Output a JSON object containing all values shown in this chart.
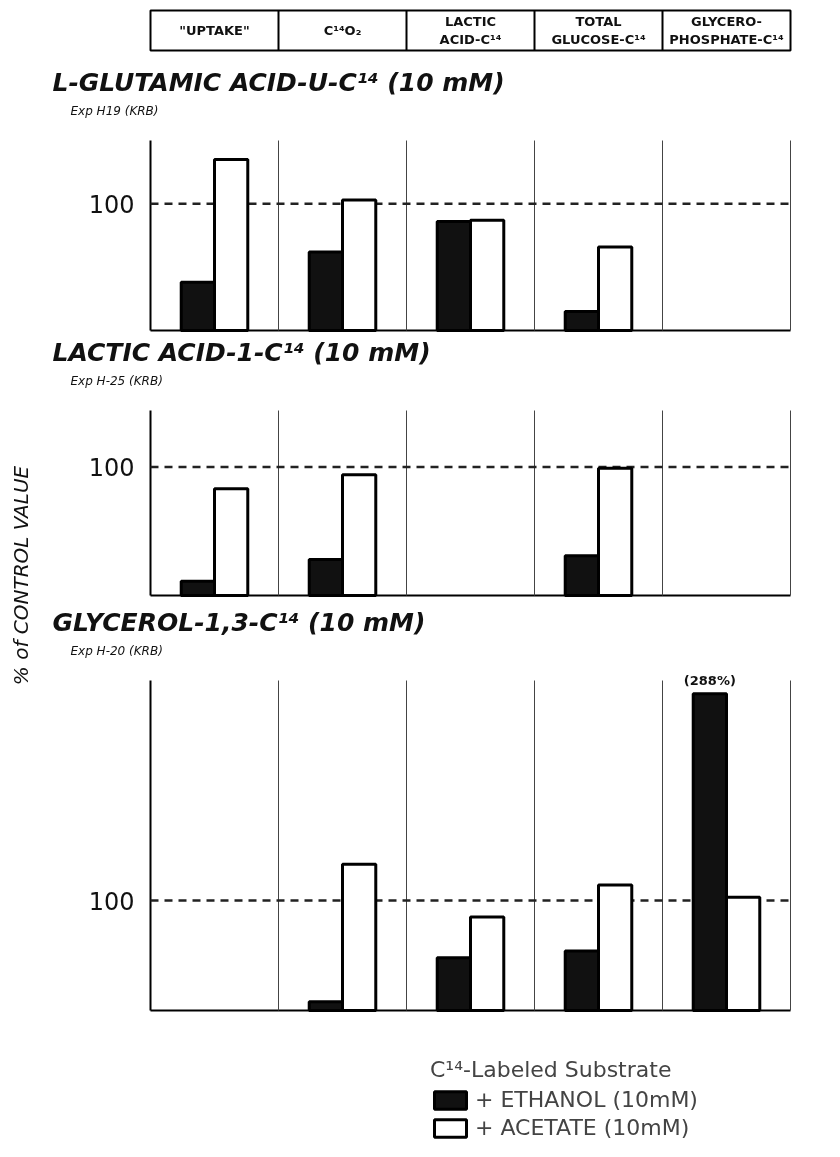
{
  "chart_data": [
    {
      "type": "bar",
      "title": "L-GLUTAMIC ACID-U-C¹⁴ (10 mM)",
      "subtitle": "Exp H19 (KRB)",
      "categories": [
        "\"UPTAKE\"",
        "C¹⁴O₂",
        "LACTIC ACID-C¹⁴",
        "TOTAL GLUCOSE-C¹⁴",
        "GLYCERO-PHOSPHATE-C¹⁴"
      ],
      "series": [
        {
          "color": "#111111",
          "values": [
            38,
            62,
            86,
            15,
            null
          ]
        },
        {
          "color": "#ffffff",
          "values": [
            135,
            103,
            87,
            66,
            null
          ]
        }
      ],
      "ylim": [
        0,
        150
      ],
      "yticks": [
        100
      ],
      "grid": "x",
      "ref_lines": [
        {
          "axis": "y",
          "value": 100,
          "line_style": "dashed"
        }
      ]
    },
    {
      "type": "bar",
      "title": "LACTIC ACID-1-C¹⁴ (10 mM)",
      "subtitle": "Exp H-25 (KRB)",
      "ylabel": "% of CONTROL VALUE",
      "series": [
        {
          "color": "#111111",
          "values": [
            11,
            28,
            null,
            31,
            null
          ]
        },
        {
          "color": "#ffffff",
          "values": [
            83,
            94,
            null,
            99,
            null
          ]
        }
      ],
      "ylim": [
        0,
        144
      ],
      "yticks": [
        100
      ],
      "grid": "x",
      "tick_labels": "y",
      "ref_lines": [
        {
          "axis": "y",
          "value": 100,
          "line_style": "dashed"
        }
      ]
    },
    {
      "type": "bar",
      "title": "GLYCEROL-1,3-C¹⁴ (10 mM)",
      "subtitle": "Exp H-20 (KRB)",
      "legend_title": "C¹⁴-Labeled Substrate",
      "series": [
        {
          "name": "+ ETHANOL (10mM)",
          "color": "#111111",
          "values": [
            null,
            8,
            48,
            54,
            288
          ],
          "value_labels": [
            null,
            null,
            null,
            null,
            "(288%)"
          ]
        },
        {
          "name": "+ ACETATE (10mM)",
          "color": "#ffffff",
          "values": [
            null,
            133,
            85,
            114,
            103
          ]
        }
      ],
      "ylim": [
        0,
        300
      ],
      "yticks": [
        100
      ],
      "grid": "x",
      "tick_labels": "y",
      "legend": "bottom",
      "ref_lines": [
        {
          "axis": "y",
          "value": 100,
          "line_style": "dashed"
        }
      ]
    }
  ]
}
